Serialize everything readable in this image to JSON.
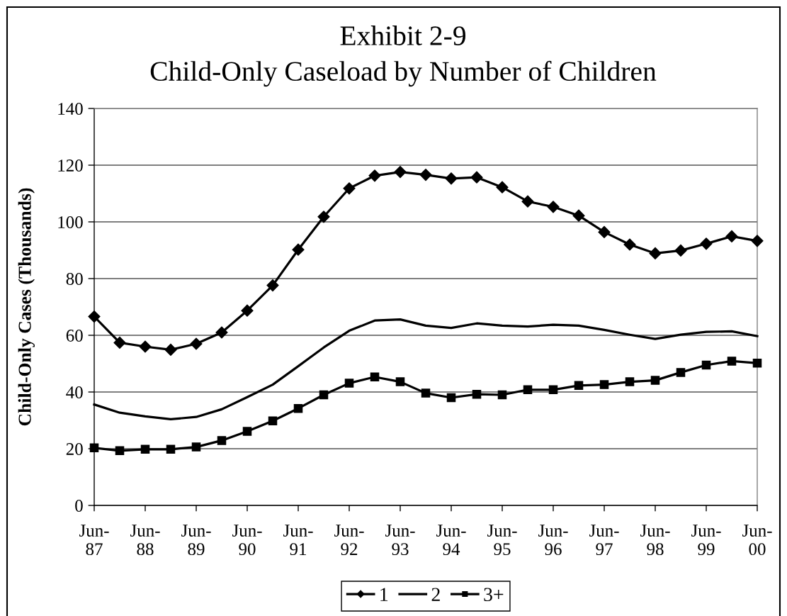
{
  "chart_data": {
    "type": "line",
    "title": "Exhibit 2-9",
    "subtitle": "Child-Only Caseload by Number of Children",
    "ylabel": "Child-Only Cases (Thousands)",
    "categories": [
      "Jun-87",
      null,
      "Jun-88",
      null,
      "Jun-89",
      null,
      "Jun-90",
      null,
      "Jun-91",
      null,
      "Jun-92",
      null,
      "Jun-93",
      null,
      "Jun-94",
      null,
      "Jun-95",
      null,
      "Jun-96",
      null,
      "Jun-97",
      null,
      "Jun-98",
      null,
      "Jun-99",
      null,
      "Jun-00"
    ],
    "series": [
      {
        "name": "1",
        "color": "#000000",
        "marker": "diamond",
        "values": [
          66.6,
          57.4,
          56.0,
          54.9,
          57.0,
          61.0,
          68.7,
          77.6,
          90.2,
          101.8,
          111.8,
          116.3,
          117.6,
          116.6,
          115.3,
          115.7,
          112.2,
          107.2,
          105.3,
          102.2,
          96.4,
          92.0,
          88.9,
          89.9,
          92.3,
          94.9,
          93.3
        ]
      },
      {
        "name": "2",
        "color": "#000000",
        "marker": "none",
        "values": [
          35.6,
          32.7,
          31.4,
          30.4,
          31.2,
          33.9,
          38.2,
          42.6,
          49.1,
          55.7,
          61.6,
          65.2,
          65.6,
          63.4,
          62.6,
          64.2,
          63.4,
          63.1,
          63.7,
          63.4,
          61.9,
          60.2,
          58.7,
          60.2,
          61.2,
          61.4,
          59.7
        ]
      },
      {
        "name": "3+",
        "color": "#000000",
        "marker": "square",
        "values": [
          20.3,
          19.3,
          19.8,
          19.8,
          20.6,
          22.9,
          26.1,
          29.8,
          34.2,
          39.0,
          43.1,
          45.3,
          43.6,
          39.6,
          38.0,
          39.2,
          39.0,
          40.8,
          40.8,
          42.3,
          42.6,
          43.6,
          44.1,
          46.9,
          49.5,
          50.9,
          50.2
        ]
      }
    ],
    "ylim": [
      0,
      140
    ],
    "yticks": [
      0,
      20,
      40,
      60,
      80,
      100,
      120,
      140
    ],
    "grid": "y",
    "legend": "bottom",
    "line_style": "solid"
  }
}
